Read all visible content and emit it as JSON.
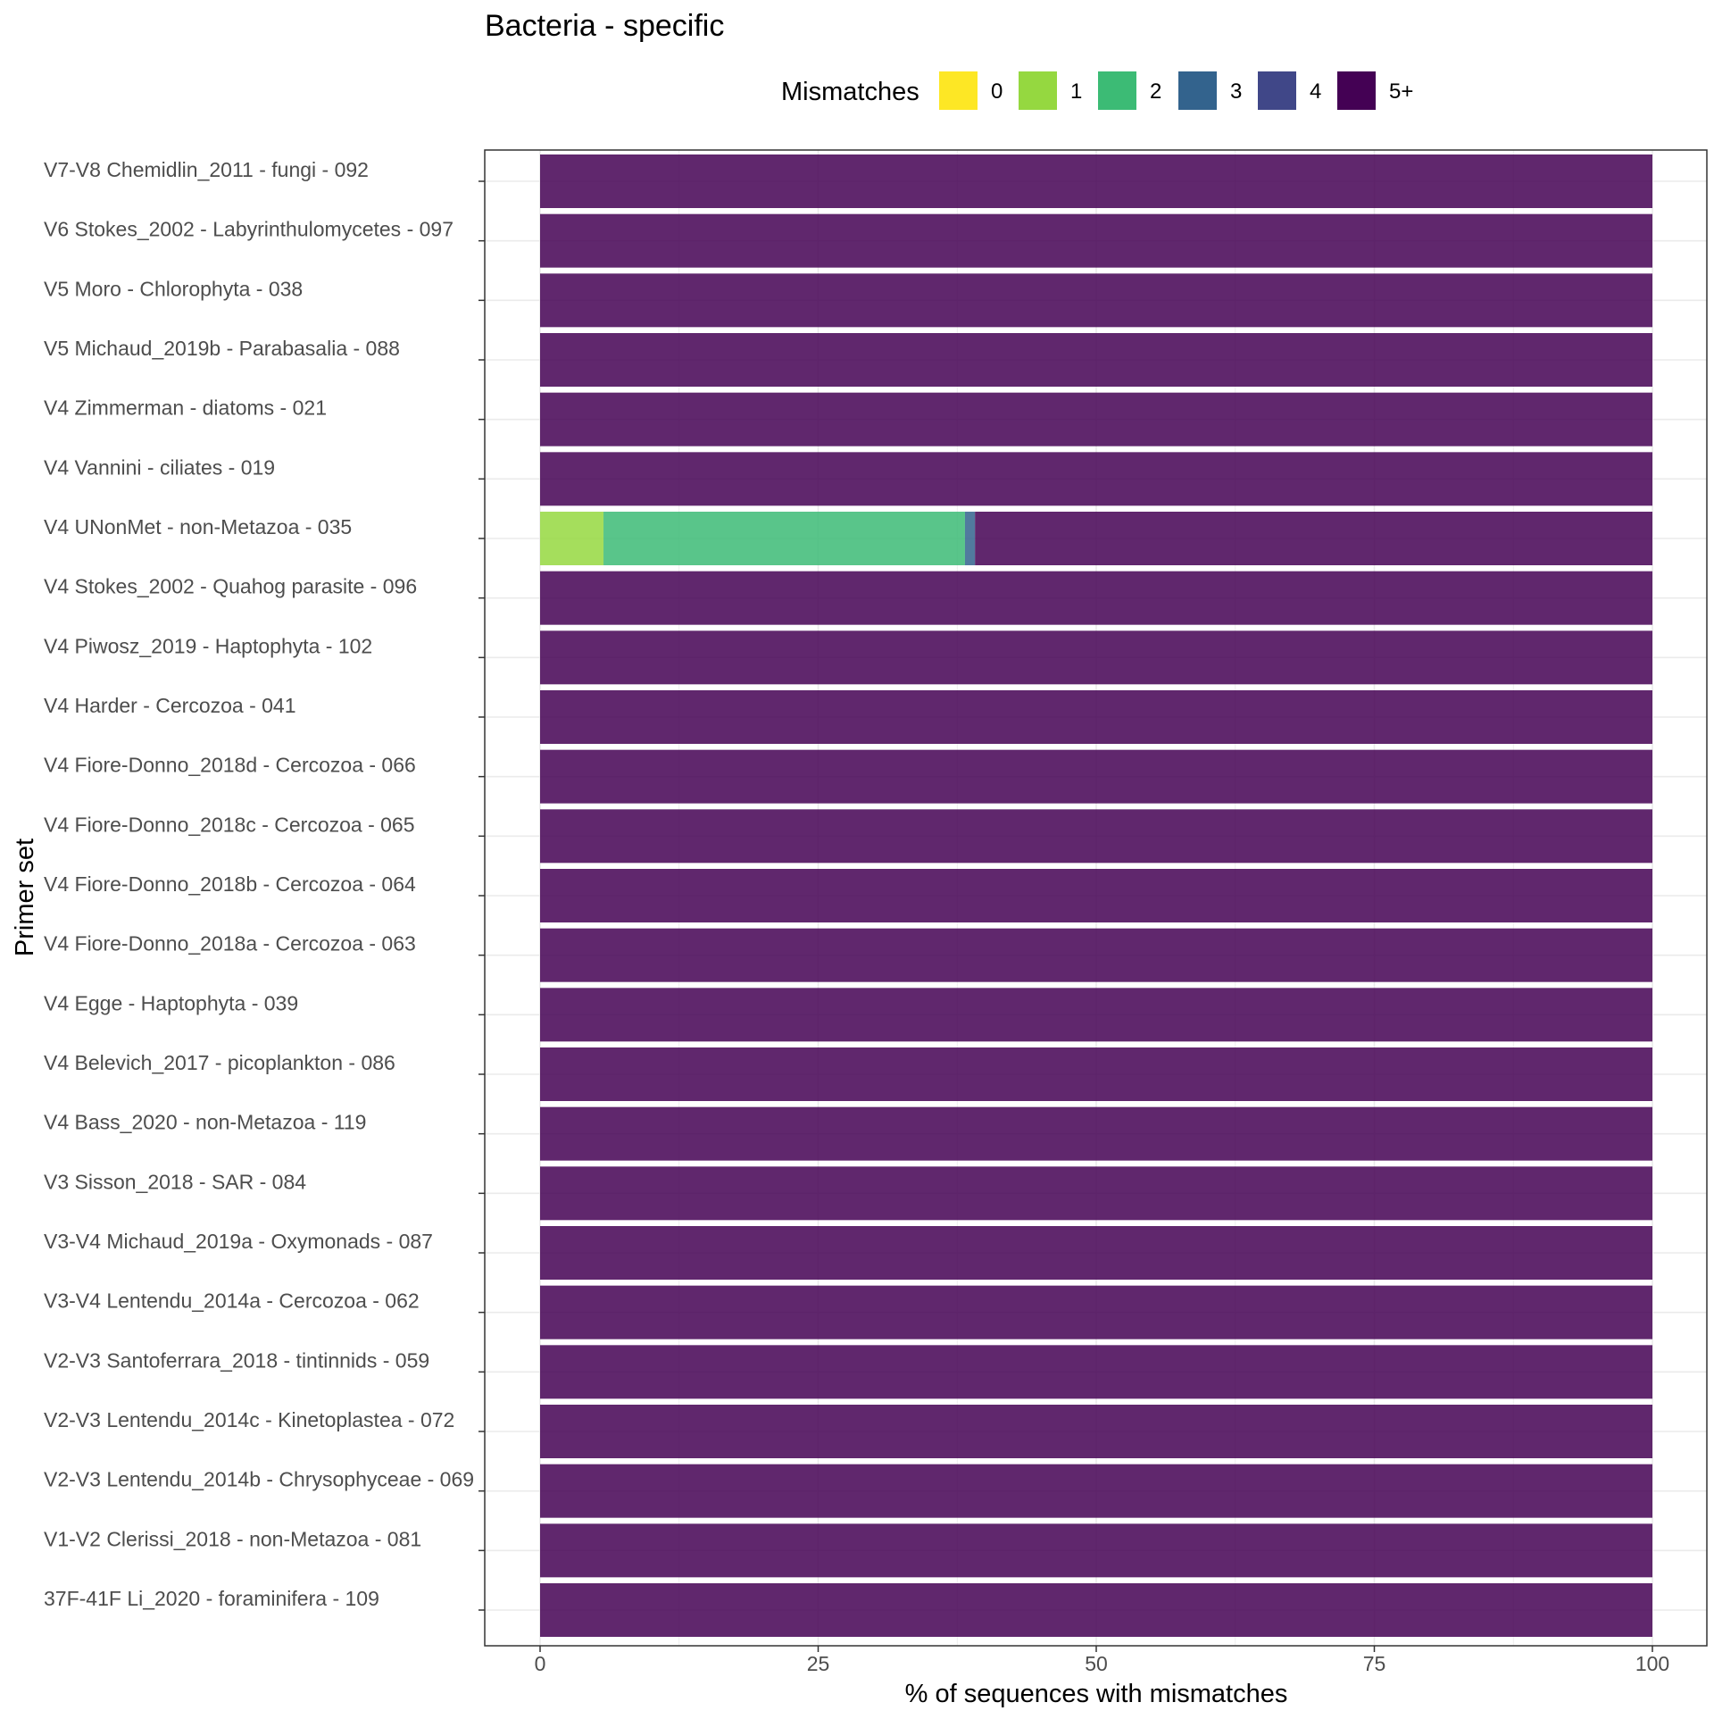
{
  "chart_data": {
    "type": "bar",
    "orientation": "horizontal",
    "stacked": true,
    "title": "Bacteria - specific",
    "xlabel": "% of sequences with mismatches",
    "ylabel": "Primer set",
    "xlim": [
      0,
      100
    ],
    "xticks": [
      0,
      25,
      50,
      75,
      100
    ],
    "grid": true,
    "legend": {
      "title": "Mismatches",
      "position": "top",
      "entries": [
        "0",
        "1",
        "2",
        "3",
        "4",
        "5+"
      ],
      "colors": [
        "#FDE725",
        "#95D840",
        "#3CBB75",
        "#33638D",
        "#404788",
        "#440154"
      ]
    },
    "categories": [
      "V7-V8 Chemidlin_2011 - fungi - 092",
      "V6 Stokes_2002 - Labyrinthulomycetes - 097",
      "V5 Moro - Chlorophyta - 038",
      "V5 Michaud_2019b - Parabasalia - 088",
      "V4 Zimmerman - diatoms - 021",
      "V4 Vannini - ciliates - 019",
      "V4 UNonMet - non-Metazoa - 035",
      "V4 Stokes_2002 - Quahog parasite - 096",
      "V4 Piwosz_2019 - Haptophyta - 102",
      "V4 Harder - Cercozoa - 041",
      "V4 Fiore-Donno_2018d - Cercozoa - 066",
      "V4 Fiore-Donno_2018c - Cercozoa - 065",
      "V4 Fiore-Donno_2018b - Cercozoa - 064",
      "V4 Fiore-Donno_2018a - Cercozoa - 063",
      "V4 Egge - Haptophyta - 039",
      "V4 Belevich_2017 - picoplankton - 086",
      "V4 Bass_2020 - non-Metazoa - 119",
      "V3 Sisson_2018 - SAR - 084",
      "V3-V4 Michaud_2019a - Oxymonads - 087",
      "V3-V4 Lentendu_2014a - Cercozoa - 062",
      "V2-V3 Santoferrara_2018 - tintinnids - 059",
      "V2-V3 Lentendu_2014c - Kinetoplastea - 072",
      "V2-V3 Lentendu_2014b - Chrysophyceae - 069",
      "V1-V2 Clerissi_2018 - non-Metazoa - 081",
      "37F-41F Li_2020 - foraminifera - 109"
    ],
    "series": [
      {
        "name": "0",
        "values": [
          0,
          0,
          0,
          0,
          0,
          0,
          0,
          0,
          0,
          0,
          0,
          0,
          0,
          0,
          0,
          0,
          0,
          0,
          0,
          0,
          0,
          0,
          0,
          0,
          0
        ]
      },
      {
        "name": "1",
        "values": [
          0,
          0,
          0,
          0,
          0,
          0,
          5.7,
          0,
          0,
          0,
          0,
          0,
          0,
          0,
          0,
          0,
          0,
          0,
          0,
          0,
          0,
          0,
          0,
          0,
          0
        ]
      },
      {
        "name": "2",
        "values": [
          0,
          0,
          0,
          0,
          0,
          0,
          32.5,
          0,
          0,
          0,
          0,
          0,
          0,
          0,
          0,
          0,
          0,
          0,
          0,
          0,
          0,
          0,
          0,
          0,
          0
        ]
      },
      {
        "name": "3",
        "values": [
          0,
          0,
          0,
          0,
          0,
          0,
          0.9,
          0,
          0,
          0,
          0,
          0,
          0,
          0,
          0,
          0,
          0,
          0,
          0,
          0,
          0,
          0,
          0,
          0,
          0
        ]
      },
      {
        "name": "4",
        "values": [
          0,
          0,
          0,
          0,
          0,
          0,
          0,
          0,
          0,
          0,
          0,
          0,
          0,
          0,
          0,
          0,
          0,
          0,
          0,
          0,
          0,
          0,
          0,
          0,
          0
        ]
      },
      {
        "name": "5+",
        "values": [
          100,
          100,
          100,
          100,
          100,
          100,
          60.9,
          100,
          100,
          100,
          100,
          100,
          100,
          100,
          100,
          100,
          100,
          100,
          100,
          100,
          100,
          100,
          100,
          100,
          100
        ]
      }
    ]
  }
}
